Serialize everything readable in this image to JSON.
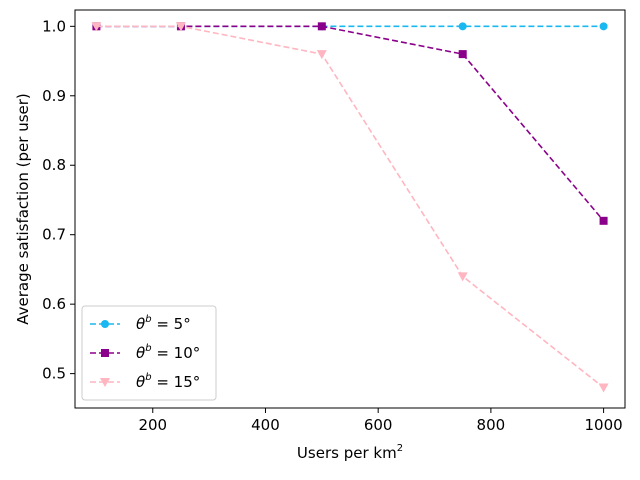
{
  "chart_data": {
    "type": "line",
    "title": "",
    "xlabel": "Users per km",
    "xlabel_superscript": "2",
    "ylabel": "Average satisfaction (per user)",
    "xlim": [
      62,
      1038
    ],
    "ylim": [
      0.4505,
      1.0235
    ],
    "x": [
      100,
      250,
      500,
      750,
      1000
    ],
    "xticks": [
      200,
      400,
      600,
      800,
      1000
    ],
    "yticks": [
      0.5,
      0.6,
      0.7,
      0.8,
      0.9,
      1.0
    ],
    "ytick_labels": [
      "0.5",
      "0.6",
      "0.7",
      "0.8",
      "0.9",
      "1.0"
    ],
    "grid": false,
    "legend_position": "lower-left",
    "series": [
      {
        "name": "θb = 5°",
        "theta": "θ",
        "sup": "b",
        "rest": " = 5°",
        "color": "#1ab8f0",
        "marker": "circle",
        "values": [
          1.0,
          1.0,
          1.0,
          1.0,
          1.0
        ]
      },
      {
        "name": "θb = 10°",
        "theta": "θ",
        "sup": "b",
        "rest": " = 10°",
        "color": "#8b008b",
        "marker": "square",
        "values": [
          1.0,
          1.0,
          1.0,
          0.96,
          0.72
        ]
      },
      {
        "name": "θb = 15°",
        "theta": "θ",
        "sup": "b",
        "rest": " = 15°",
        "color": "#ffb6c1",
        "marker": "triangle-down",
        "values": [
          1.0,
          1.0,
          0.96,
          0.64,
          0.48
        ]
      }
    ]
  }
}
